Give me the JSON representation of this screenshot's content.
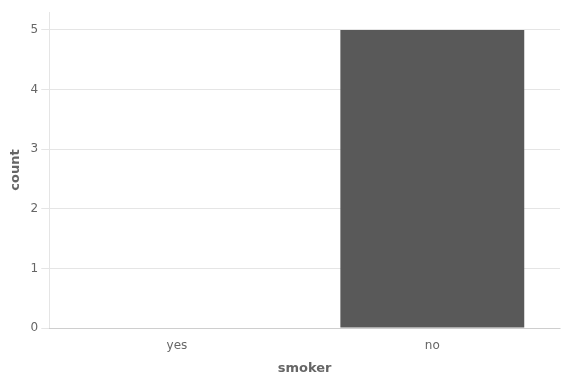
{
  "chart_data": {
    "type": "bar",
    "categories": [
      "yes",
      "no"
    ],
    "values": [
      0,
      5
    ],
    "color": "#595959",
    "xlabel": "smoker",
    "ylabel": "count",
    "ylim": [
      0,
      5.3
    ],
    "yticks": [
      0,
      1,
      2,
      3,
      4,
      5
    ],
    "grid": true
  }
}
